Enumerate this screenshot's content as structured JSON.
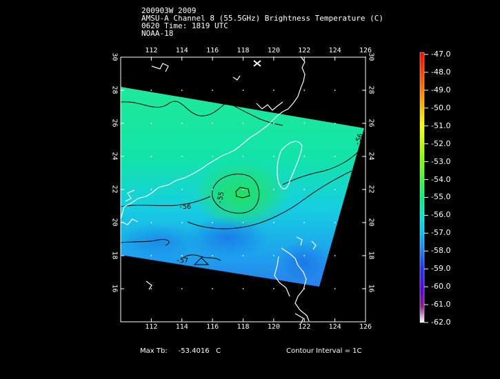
{
  "header": {
    "line1": "200903W 2009",
    "line2": "AMSU-A Channel 8 (55.5GHz) Brightness Temperature (C)",
    "line3": "0620 Time: 1819 UTC",
    "line4": "NOAA-18"
  },
  "axes": {
    "x_ticks": [
      "112",
      "114",
      "116",
      "118",
      "120",
      "122",
      "124",
      "126"
    ],
    "y_ticks": [
      "16",
      "18",
      "20",
      "22",
      "24",
      "26",
      "28",
      "30"
    ],
    "xlim": [
      110,
      126
    ],
    "ylim": [
      14,
      30
    ]
  },
  "colorbar": {
    "labels": [
      "-47.0",
      "-48.0",
      "-49.0",
      "-50.0",
      "-51.0",
      "-52.0",
      "-53.0",
      "-54.0",
      "-55.0",
      "-56.0",
      "-57.0",
      "-58.0",
      "-59.0",
      "-60.0",
      "-61.0",
      "-62.0"
    ]
  },
  "contour_labels": [
    "-56",
    "-55",
    "-56",
    "-57"
  ],
  "footer": {
    "max_tb_label": "Max Tb:",
    "max_tb_value": "-53.4016",
    "max_tb_unit": "C",
    "contour_interval": "Contour Interval = 1C"
  }
}
